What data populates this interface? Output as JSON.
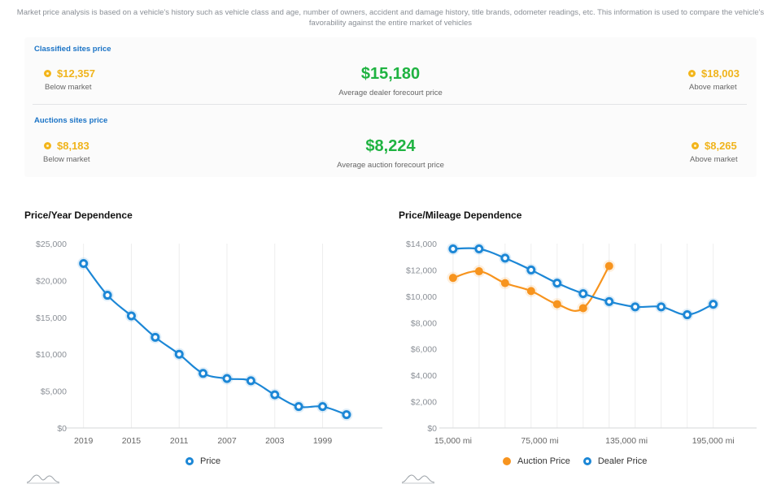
{
  "disclaimer": "Market price analysis is based on a vehicle's history such as vehicle class and age, number of owners, accident and damage history, title brands, odometer readings, etc. This information is used to compare the vehicle's favorability against the entire market of vehicles",
  "classified": {
    "title": "Classified sites price",
    "below_value": "$12,357",
    "below_label": "Below market",
    "center_value": "$15,180",
    "center_label": "Average dealer forecourt price",
    "above_value": "$18,003",
    "above_label": "Above market"
  },
  "auctions": {
    "title": "Auctions sites price",
    "below_value": "$8,183",
    "below_label": "Below market",
    "center_value": "$8,224",
    "center_label": "Average auction forecourt price",
    "above_value": "$8,265",
    "above_label": "Above market"
  },
  "colors": {
    "accent_blue": "#1c87d6",
    "auction_orange": "#f7941e",
    "price_green": "#1fb341",
    "coin_gold": "#f3b51b"
  },
  "chart_data": [
    {
      "type": "line",
      "title": "Price/Year Dependence",
      "ylim": [
        0,
        25000
      ],
      "y_ticks": [
        "$0",
        "$5,000",
        "$10,000",
        "$15,000",
        "$20,000",
        "$25,000"
      ],
      "x_ticks": [
        "2019",
        "2015",
        "2011",
        "2007",
        "2003",
        "1999"
      ],
      "x": [
        2019,
        2017,
        2015,
        2013,
        2011,
        2009,
        2007,
        2005,
        2003,
        2001,
        1999,
        1997
      ],
      "series": [
        {
          "name": "Price",
          "color": "#1c87d6",
          "values": [
            22300,
            18000,
            15200,
            12300,
            10000,
            7400,
            6700,
            6400,
            4500,
            2900,
            2900,
            1800
          ]
        }
      ],
      "legend": "bottom-center",
      "grid": "vertical"
    },
    {
      "type": "line",
      "title": "Price/Mileage Dependence",
      "ylim": [
        0,
        14000
      ],
      "y_ticks": [
        "$0",
        "$2,000",
        "$4,000",
        "$6,000",
        "$8,000",
        "$10,000",
        "$12,000",
        "$14,000"
      ],
      "x_ticks": [
        "15,000 mi",
        "75,000 mi",
        "135,000 mi",
        "195,000 mi"
      ],
      "x": [
        15000,
        33000,
        51000,
        69000,
        87000,
        105000,
        123000,
        141000,
        159000,
        177000,
        195000
      ],
      "series": [
        {
          "name": "Auction Price",
          "color": "#f7941e",
          "values": [
            11400,
            11900,
            11000,
            10400,
            9400,
            9100,
            12300,
            null,
            null,
            null,
            null
          ]
        },
        {
          "name": "Dealer Price",
          "color": "#1c87d6",
          "values": [
            13600,
            13600,
            12900,
            12000,
            11000,
            10200,
            9600,
            9200,
            9200,
            8600,
            9400
          ]
        }
      ],
      "legend": "bottom-center",
      "grid": "vertical"
    }
  ]
}
